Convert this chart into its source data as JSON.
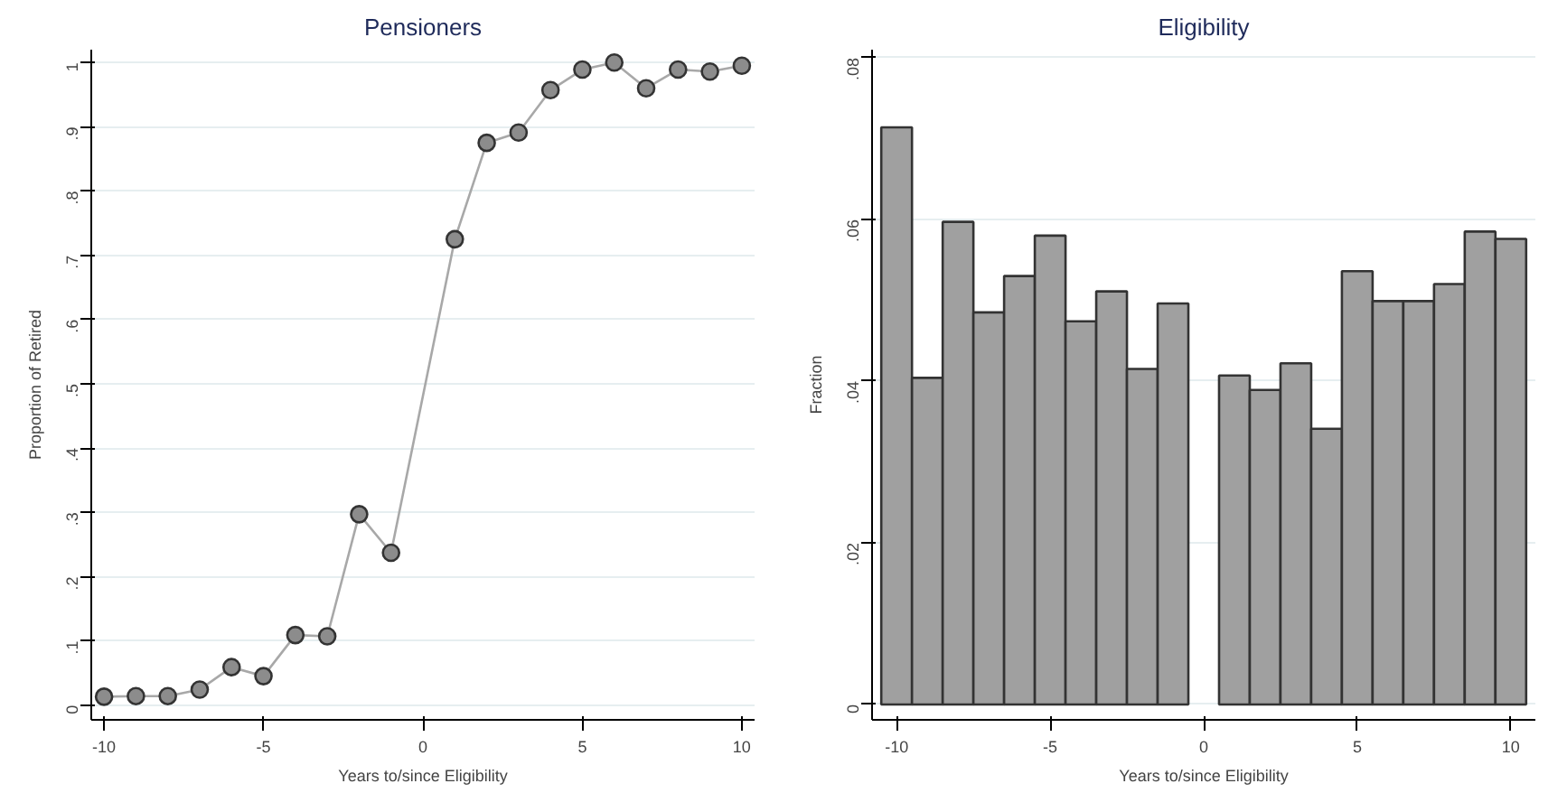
{
  "chart_data": [
    {
      "type": "line",
      "title": "Pensioners",
      "xlabel": "Years to/since Eligibility",
      "ylabel": "Proportion of Retired",
      "x": [
        -10,
        -9,
        -8,
        -7,
        -6,
        -5,
        -4,
        -3,
        -2,
        -1,
        1,
        2,
        3,
        4,
        5,
        6,
        7,
        8,
        9,
        10
      ],
      "series": [
        {
          "color": "#8c8c8c",
          "values": [
            0.013,
            0.014,
            0.014,
            0.024,
            0.059,
            0.045,
            0.109,
            0.107,
            0.297,
            0.237,
            0.725,
            0.875,
            0.891,
            0.957,
            0.989,
            1.0,
            0.96,
            0.989,
            0.986,
            0.995
          ]
        }
      ],
      "marker": "circle",
      "grid": "y",
      "xlim": [
        -10.4,
        10.4
      ],
      "xticks": [
        -10,
        -5,
        0,
        5,
        10
      ],
      "ylim": [
        -0.023,
        1.02
      ],
      "yticks": [
        0,
        {
          "value": 0.1,
          "label": ".1"
        },
        {
          "value": 0.2,
          "label": ".2"
        },
        {
          "value": 0.3,
          "label": ".3"
        },
        {
          "value": 0.4,
          "label": ".4"
        },
        {
          "value": 0.5,
          "label": ".5"
        },
        {
          "value": 0.6,
          "label": ".6"
        },
        {
          "value": 0.7,
          "label": ".7"
        },
        {
          "value": 0.8,
          "label": ".8"
        },
        {
          "value": 0.9,
          "label": ".9"
        },
        1
      ]
    },
    {
      "type": "histogram",
      "title": "Eligibility",
      "xlabel": "Years to/since Eligibility",
      "ylabel": "Fraction",
      "color": "#a0a0a0",
      "bins": [
        -10.5,
        -9.5,
        -8.5,
        -7.5,
        -6.5,
        -5.5,
        -4.5,
        -3.5,
        -2.5,
        -1.5,
        -0.5,
        0.5,
        1.5,
        2.5,
        3.5,
        4.5,
        5.5,
        6.5,
        7.5,
        8.5,
        9.5,
        10.5
      ],
      "values": [
        0.0714,
        0.0404,
        0.0597,
        0.0485,
        0.053,
        0.058,
        0.0474,
        0.0511,
        0.0415,
        0.0496,
        null,
        0.0407,
        0.0389,
        0.0422,
        0.0341,
        0.0536,
        0.0499,
        0.0499,
        0.052,
        0.0585,
        0.0576
      ],
      "grid": "y",
      "xlim": [
        -10.8,
        10.8
      ],
      "xticks": [
        -10,
        -5,
        0,
        5,
        10
      ],
      "ylim": [
        -0.0019,
        0.081
      ],
      "yticks": [
        0,
        {
          "value": 0.02,
          "label": ".02"
        },
        {
          "value": 0.04,
          "label": ".04"
        },
        {
          "value": 0.06,
          "label": ".06"
        },
        {
          "value": 0.08,
          "label": ".08"
        }
      ]
    }
  ]
}
